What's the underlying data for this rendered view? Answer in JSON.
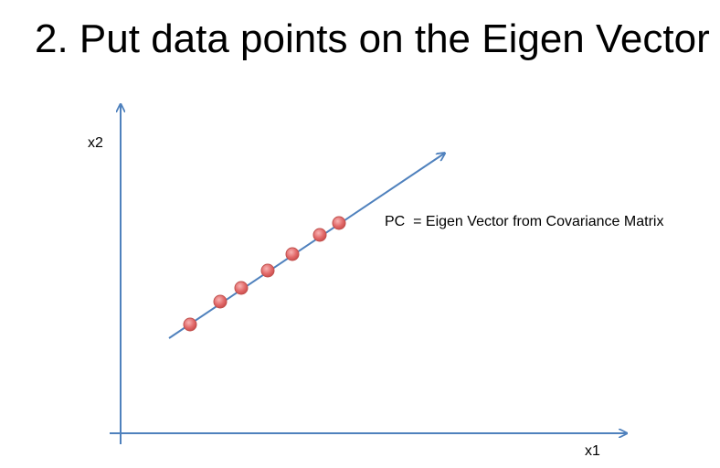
{
  "title": "2. Put data points on the Eigen Vector",
  "axes": {
    "x_label": "x1",
    "y_label": "x2"
  },
  "annotation": "PC  = Eigen Vector from Covariance Matrix",
  "colors": {
    "axis": "#4f81bd",
    "vector": "#4f81bd",
    "point_fill": "#e36c6c",
    "point_stroke": "#c0504d"
  },
  "points_count": 7
}
